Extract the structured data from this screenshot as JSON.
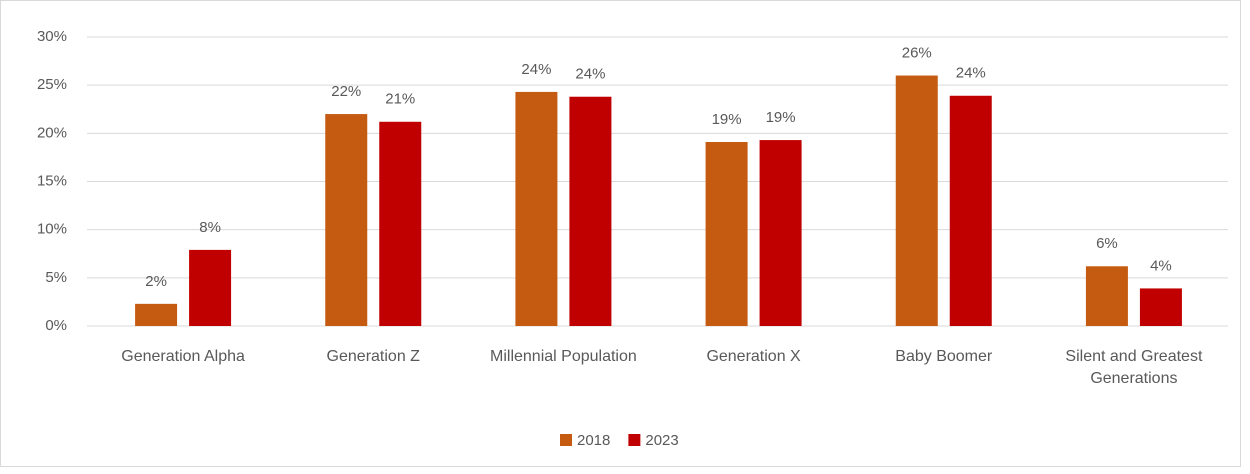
{
  "chart_data": {
    "type": "bar",
    "categories": [
      "Generation Alpha",
      "Generation Z",
      "Millennial Population",
      "Generation X",
      "Baby Boomer",
      "Silent and Greatest Generations"
    ],
    "series": [
      {
        "name": "2018",
        "color": "#c55a11",
        "values": [
          2.3,
          22.0,
          24.3,
          19.1,
          26.0,
          6.2
        ],
        "value_labels": [
          "2%",
          "22%",
          "24%",
          "19%",
          "26%",
          "6%"
        ]
      },
      {
        "name": "2023",
        "color": "#c00000",
        "values": [
          7.9,
          21.2,
          23.8,
          19.3,
          23.9,
          3.9
        ],
        "value_labels": [
          "8%",
          "21%",
          "24%",
          "19%",
          "24%",
          "4%"
        ]
      }
    ],
    "ylim": [
      0,
      30
    ],
    "yticks": [
      {
        "value": 0,
        "label": "0%"
      },
      {
        "value": 5,
        "label": "5%"
      },
      {
        "value": 10,
        "label": "10%"
      },
      {
        "value": 15,
        "label": "15%"
      },
      {
        "value": 20,
        "label": "20%"
      },
      {
        "value": 25,
        "label": "25%"
      },
      {
        "value": 30,
        "label": "30%"
      }
    ],
    "grid": true,
    "legend": "bottom"
  }
}
